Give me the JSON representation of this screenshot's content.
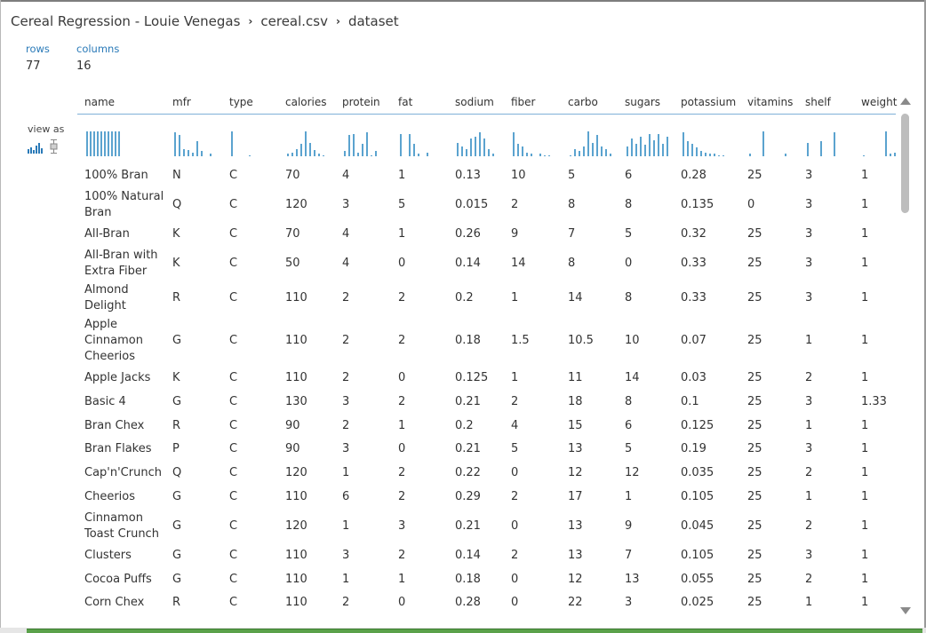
{
  "breadcrumb": {
    "items": [
      "Cereal Regression - Louie Venegas",
      "cereal.csv",
      "dataset"
    ],
    "separator": "›"
  },
  "stats": {
    "rows_label": "rows",
    "rows_value": "77",
    "columns_label": "columns",
    "columns_value": "16"
  },
  "view_as_label": "view as",
  "colors": {
    "accent": "#2a7ab8",
    "histogram": "#5ba3cf",
    "header_rule": "#7fb0d8",
    "status_bar": "#5aa14a"
  },
  "columns": [
    "name",
    "mfr",
    "type",
    "calories",
    "protein",
    "fat",
    "sodium",
    "fiber",
    "carbo",
    "sugars",
    "potassium",
    "vitamins",
    "shelf",
    "weight"
  ],
  "histograms": [
    [
      1,
      1,
      1,
      1,
      1,
      1,
      1,
      1,
      1,
      1
    ],
    [
      0.95,
      0.85,
      0.3,
      0.25,
      0.15,
      0.6,
      0.2,
      0,
      0.1
    ],
    [
      1,
      0,
      0,
      0,
      0.05
    ],
    [
      0.1,
      0.15,
      0.3,
      0.5,
      1,
      0.55,
      0.25,
      0.1,
      0.05
    ],
    [
      0.2,
      0.85,
      0.9,
      0.15,
      0.5,
      0.95,
      0.05,
      0.2
    ],
    [
      0.9,
      0,
      0.9,
      0.5,
      0.1,
      0,
      0.15
    ],
    [
      0.55,
      0.4,
      0.3,
      0.7,
      0.8,
      0.95,
      0.7,
      0.3,
      0.1
    ],
    [
      0.95,
      0.5,
      0.4,
      0.15,
      0.1,
      0,
      0.1,
      0.05,
      0.05
    ],
    [
      0.05,
      0.3,
      0.2,
      0.4,
      1,
      0.55,
      0.85,
      0.4,
      0.3,
      0.1
    ],
    [
      0.4,
      0.7,
      0.5,
      0.8,
      0.45,
      0.9,
      0.65,
      0.9,
      0.5,
      0.8
    ],
    [
      0.95,
      0.6,
      0.5,
      0.35,
      0.2,
      0.15,
      0.1,
      0.1,
      0.05,
      0.05
    ],
    [
      0.1,
      0,
      0,
      1,
      0,
      0,
      0,
      0,
      0.1
    ],
    [
      0.55,
      0,
      0,
      0.6,
      0,
      0,
      0.95
    ],
    [
      0.05,
      0,
      0,
      0,
      0,
      1,
      0.1,
      0.15
    ]
  ],
  "rows": [
    [
      "100% Bran",
      "N",
      "C",
      "70",
      "4",
      "1",
      "0.13",
      "10",
      "5",
      "6",
      "0.28",
      "25",
      "3",
      "1"
    ],
    [
      "100% Natural Bran",
      "Q",
      "C",
      "120",
      "3",
      "5",
      "0.015",
      "2",
      "8",
      "8",
      "0.135",
      "0",
      "3",
      "1"
    ],
    [
      "All-Bran",
      "K",
      "C",
      "70",
      "4",
      "1",
      "0.26",
      "9",
      "7",
      "5",
      "0.32",
      "25",
      "3",
      "1"
    ],
    [
      "All-Bran with Extra Fiber",
      "K",
      "C",
      "50",
      "4",
      "0",
      "0.14",
      "14",
      "8",
      "0",
      "0.33",
      "25",
      "3",
      "1"
    ],
    [
      "Almond Delight",
      "R",
      "C",
      "110",
      "2",
      "2",
      "0.2",
      "1",
      "14",
      "8",
      "0.33",
      "25",
      "3",
      "1"
    ],
    [
      "Apple Cinnamon Cheerios",
      "G",
      "C",
      "110",
      "2",
      "2",
      "0.18",
      "1.5",
      "10.5",
      "10",
      "0.07",
      "25",
      "1",
      "1"
    ],
    [
      "Apple Jacks",
      "K",
      "C",
      "110",
      "2",
      "0",
      "0.125",
      "1",
      "11",
      "14",
      "0.03",
      "25",
      "2",
      "1"
    ],
    [
      "Basic 4",
      "G",
      "C",
      "130",
      "3",
      "2",
      "0.21",
      "2",
      "18",
      "8",
      "0.1",
      "25",
      "3",
      "1.33"
    ],
    [
      "Bran Chex",
      "R",
      "C",
      "90",
      "2",
      "1",
      "0.2",
      "4",
      "15",
      "6",
      "0.125",
      "25",
      "1",
      "1"
    ],
    [
      "Bran Flakes",
      "P",
      "C",
      "90",
      "3",
      "0",
      "0.21",
      "5",
      "13",
      "5",
      "0.19",
      "25",
      "3",
      "1"
    ],
    [
      "Cap'n'Crunch",
      "Q",
      "C",
      "120",
      "1",
      "2",
      "0.22",
      "0",
      "12",
      "12",
      "0.035",
      "25",
      "2",
      "1"
    ],
    [
      "Cheerios",
      "G",
      "C",
      "110",
      "6",
      "2",
      "0.29",
      "2",
      "17",
      "1",
      "0.105",
      "25",
      "1",
      "1"
    ],
    [
      "Cinnamon Toast Crunch",
      "G",
      "C",
      "120",
      "1",
      "3",
      "0.21",
      "0",
      "13",
      "9",
      "0.045",
      "25",
      "2",
      "1"
    ],
    [
      "Clusters",
      "G",
      "C",
      "110",
      "3",
      "2",
      "0.14",
      "2",
      "13",
      "7",
      "0.105",
      "25",
      "3",
      "1"
    ],
    [
      "Cocoa Puffs",
      "G",
      "C",
      "110",
      "1",
      "1",
      "0.18",
      "0",
      "12",
      "13",
      "0.055",
      "25",
      "2",
      "1"
    ],
    [
      "Corn Chex",
      "R",
      "C",
      "110",
      "2",
      "0",
      "0.28",
      "0",
      "22",
      "3",
      "0.025",
      "25",
      "1",
      "1"
    ]
  ]
}
